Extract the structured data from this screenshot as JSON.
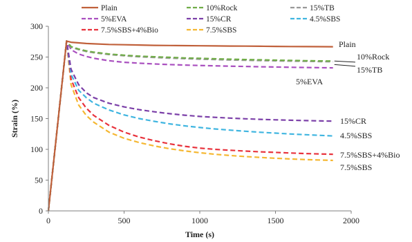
{
  "chart_data": {
    "type": "line",
    "xlabel": "Time (s)",
    "ylabel": "Strain (%)",
    "xlim": [
      0,
      2000
    ],
    "ylim": [
      0,
      300
    ],
    "xticks": [
      0,
      500,
      1000,
      1500,
      2000
    ],
    "yticks": [
      0,
      50,
      100,
      150,
      200,
      250,
      300
    ],
    "grid": false,
    "legend_position": "top",
    "loading": {
      "x": [
        0,
        120
      ],
      "y": [
        0,
        276
      ]
    },
    "x": [
      120,
      150,
      200,
      250,
      300,
      400,
      500,
      600,
      700,
      800,
      900,
      1000,
      1100,
      1200,
      1300,
      1400,
      1500,
      1600,
      1700,
      1800,
      1880
    ],
    "series": [
      {
        "name": "Plain",
        "color": "#c0603a",
        "dash": "solid",
        "values": [
          276,
          274,
          273,
          272,
          271.5,
          270.5,
          270,
          269.5,
          269,
          268.8,
          268.5,
          268.3,
          268.1,
          267.9,
          267.7,
          267.5,
          267.3,
          267.1,
          267,
          266.8,
          266.7
        ]
      },
      {
        "name": "10%Rock",
        "color": "#70ad47",
        "dash": "dashed",
        "values": [
          276,
          267,
          263,
          260,
          258,
          255,
          253,
          251.5,
          250.5,
          249.5,
          248.5,
          248,
          247.2,
          246.5,
          246,
          245.5,
          245,
          244.5,
          244,
          243.7,
          243.5
        ]
      },
      {
        "name": "15%TB",
        "color": "#999999",
        "dash": "dashed",
        "values": [
          276,
          266,
          262,
          259,
          257,
          254,
          252,
          250.5,
          249.2,
          248.2,
          247.3,
          246.5,
          245.8,
          245.2,
          244.7,
          244.2,
          243.8,
          243.4,
          243,
          242.6,
          242.3
        ]
      },
      {
        "name": "5%EVA",
        "color": "#a94fbf",
        "dash": "dashed",
        "values": [
          276,
          262,
          255,
          251,
          248,
          244,
          241.5,
          240,
          238.8,
          237.8,
          237,
          236.3,
          235.7,
          235.2,
          234.7,
          234.2,
          233.8,
          233.4,
          233,
          232.7,
          232.5
        ]
      },
      {
        "name": "15%CR",
        "color": "#7b3fa8",
        "dash": "dashed",
        "values": [
          276,
          230,
          205,
          192,
          184,
          175,
          169,
          164.5,
          161,
          158,
          155.5,
          153.5,
          152,
          150.8,
          149.7,
          148.8,
          148,
          147.3,
          146.7,
          146.2,
          145.8
        ]
      },
      {
        "name": "4.5%SBS",
        "color": "#3fb5e0",
        "dash": "dashed",
        "values": [
          276,
          222,
          196,
          184,
          175,
          164,
          156,
          150,
          145.5,
          141.5,
          138.2,
          135.5,
          133.2,
          131.2,
          129.4,
          127.8,
          126.4,
          125,
          123.8,
          122.7,
          121.8
        ]
      },
      {
        "name": "7.5%SBS+4%Bio",
        "color": "#e8323c",
        "dash": "dashed",
        "values": [
          276,
          214,
          184,
          167,
          155,
          139,
          128,
          120,
          114,
          109,
          105,
          102,
          100,
          98.5,
          97.2,
          96,
          95,
          94,
          93.2,
          92.5,
          92
        ]
      },
      {
        "name": "7.5%SBS",
        "color": "#f5b731",
        "dash": "dashed",
        "values": [
          276,
          205,
          172,
          155,
          144,
          128,
          118,
          111,
          105.5,
          101,
          97.5,
          94.5,
          92,
          90,
          88.3,
          86.8,
          85.5,
          84.4,
          83.4,
          82.6,
          82
        ]
      }
    ],
    "annotations": [
      {
        "text": "Plain"
      },
      {
        "text": "10%Rock"
      },
      {
        "text": "15%TB"
      },
      {
        "text": "5%EVA"
      },
      {
        "text": "15%CR"
      },
      {
        "text": "4.5%SBS"
      },
      {
        "text": "7.5%SBS+4%Bio"
      },
      {
        "text": "7.5%SBS"
      }
    ]
  }
}
